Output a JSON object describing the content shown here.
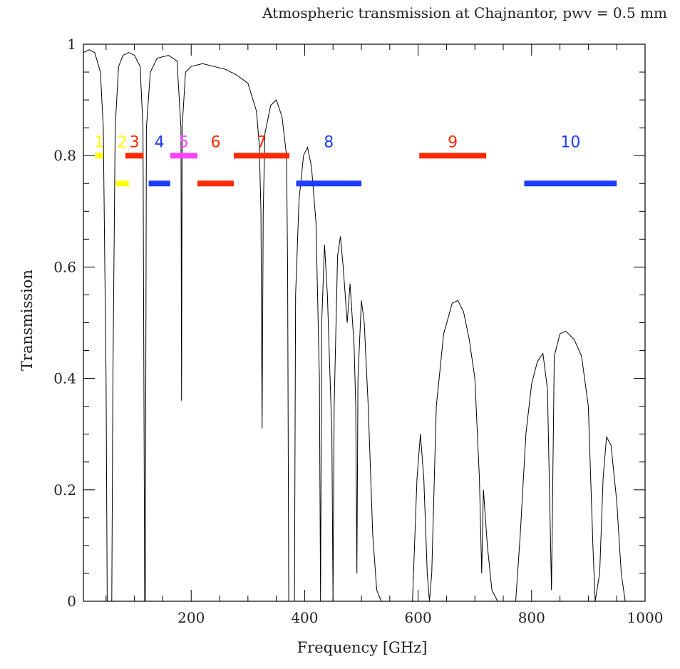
{
  "chart_data": {
    "type": "line",
    "title": "Atmospheric transmission at Chajnantor, pwv = 0.5 mm",
    "xlabel": "Frequency [GHz]",
    "ylabel": "Transmission",
    "xlim": [
      10,
      1000
    ],
    "ylim": [
      0,
      1
    ],
    "xticks": [
      200,
      400,
      600,
      800,
      1000
    ],
    "yticks": [
      0,
      0.2,
      0.4,
      0.6,
      0.8,
      1
    ],
    "ytick_labels": [
      "0",
      "0.2",
      "0.4",
      "0.6",
      "0.8",
      "1"
    ],
    "xtick_labels": [
      "200",
      "400",
      "600",
      "800",
      "1000"
    ],
    "grid": false,
    "series": [
      {
        "color": "#000000",
        "points": [
          [
            10,
            0.985
          ],
          [
            20,
            0.99
          ],
          [
            30,
            0.985
          ],
          [
            40,
            0.95
          ],
          [
            45,
            0.85
          ],
          [
            50,
            0.4
          ],
          [
            52,
            0.0
          ],
          [
            60,
            0.0
          ],
          [
            62,
            0.4
          ],
          [
            66,
            0.85
          ],
          [
            72,
            0.96
          ],
          [
            80,
            0.98
          ],
          [
            90,
            0.985
          ],
          [
            100,
            0.98
          ],
          [
            110,
            0.96
          ],
          [
            115,
            0.85
          ],
          [
            118,
            0.0
          ],
          [
            119,
            0.0
          ],
          [
            121,
            0.85
          ],
          [
            128,
            0.95
          ],
          [
            140,
            0.975
          ],
          [
            160,
            0.98
          ],
          [
            175,
            0.97
          ],
          [
            182,
            0.85
          ],
          [
            183,
            0.36
          ],
          [
            184,
            0.85
          ],
          [
            190,
            0.95
          ],
          [
            200,
            0.96
          ],
          [
            220,
            0.965
          ],
          [
            240,
            0.96
          ],
          [
            260,
            0.955
          ],
          [
            280,
            0.945
          ],
          [
            300,
            0.93
          ],
          [
            315,
            0.88
          ],
          [
            320,
            0.82
          ],
          [
            323,
            0.7
          ],
          [
            325,
            0.31
          ],
          [
            327,
            0.7
          ],
          [
            330,
            0.84
          ],
          [
            340,
            0.89
          ],
          [
            350,
            0.9
          ],
          [
            360,
            0.87
          ],
          [
            368,
            0.8
          ],
          [
            370,
            0.6
          ],
          [
            372,
            0.0
          ],
          [
            382,
            0.0
          ],
          [
            384,
            0.55
          ],
          [
            390,
            0.72
          ],
          [
            398,
            0.8
          ],
          [
            405,
            0.815
          ],
          [
            412,
            0.78
          ],
          [
            420,
            0.68
          ],
          [
            426,
            0.4
          ],
          [
            428,
            0.0
          ],
          [
            430,
            0.5
          ],
          [
            435,
            0.64
          ],
          [
            440,
            0.55
          ],
          [
            448,
            0.3
          ],
          [
            450,
            0.0
          ],
          [
            452,
            0.35
          ],
          [
            458,
            0.62
          ],
          [
            463,
            0.655
          ],
          [
            468,
            0.6
          ],
          [
            475,
            0.5
          ],
          [
            480,
            0.57
          ],
          [
            487,
            0.46
          ],
          [
            490,
            0.35
          ],
          [
            492,
            0.05
          ],
          [
            494,
            0.4
          ],
          [
            500,
            0.54
          ],
          [
            505,
            0.5
          ],
          [
            512,
            0.35
          ],
          [
            520,
            0.12
          ],
          [
            527,
            0.02
          ],
          [
            535,
            0.0
          ],
          [
            590,
            0.0
          ],
          [
            598,
            0.22
          ],
          [
            604,
            0.3
          ],
          [
            610,
            0.22
          ],
          [
            616,
            0.05
          ],
          [
            620,
            0.0
          ],
          [
            624,
            0.05
          ],
          [
            632,
            0.35
          ],
          [
            645,
            0.48
          ],
          [
            660,
            0.535
          ],
          [
            670,
            0.54
          ],
          [
            680,
            0.52
          ],
          [
            690,
            0.47
          ],
          [
            700,
            0.4
          ],
          [
            708,
            0.22
          ],
          [
            712,
            0.05
          ],
          [
            715,
            0.2
          ],
          [
            722,
            0.1
          ],
          [
            730,
            0.02
          ],
          [
            740,
            0.0
          ],
          [
            772,
            0.0
          ],
          [
            780,
            0.12
          ],
          [
            790,
            0.3
          ],
          [
            800,
            0.39
          ],
          [
            810,
            0.43
          ],
          [
            820,
            0.445
          ],
          [
            828,
            0.38
          ],
          [
            835,
            0.02
          ],
          [
            840,
            0.44
          ],
          [
            850,
            0.48
          ],
          [
            860,
            0.485
          ],
          [
            875,
            0.47
          ],
          [
            888,
            0.44
          ],
          [
            900,
            0.35
          ],
          [
            908,
            0.1
          ],
          [
            912,
            0.0
          ],
          [
            920,
            0.05
          ],
          [
            926,
            0.22
          ],
          [
            932,
            0.295
          ],
          [
            940,
            0.28
          ],
          [
            950,
            0.18
          ],
          [
            958,
            0.05
          ],
          [
            965,
            0.0
          ],
          [
            1000,
            0.0
          ]
        ]
      }
    ],
    "bands": [
      {
        "label": "1",
        "color": "#ffff00",
        "x0": 31,
        "x1": 45,
        "y": 0.8
      },
      {
        "label": "2",
        "color": "#ffff00",
        "x0": 67,
        "x1": 90,
        "y": 0.75
      },
      {
        "label": "3",
        "color": "#ff2a00",
        "x0": 84,
        "x1": 116,
        "y": 0.8
      },
      {
        "label": "4",
        "color": "#1e3cff",
        "x0": 125,
        "x1": 163,
        "y": 0.75
      },
      {
        "label": "5",
        "color": "#ff44ff",
        "x0": 163,
        "x1": 211,
        "y": 0.8
      },
      {
        "label": "6",
        "color": "#ff2a00",
        "x0": 211,
        "x1": 275,
        "y": 0.75
      },
      {
        "label": "7",
        "color": "#ff2a00",
        "x0": 275,
        "x1": 373,
        "y": 0.8
      },
      {
        "label": "8",
        "color": "#1e3cff",
        "x0": 385,
        "x1": 500,
        "y": 0.75
      },
      {
        "label": "9",
        "color": "#ff2a00",
        "x0": 602,
        "x1": 720,
        "y": 0.8
      },
      {
        "label": "10",
        "color": "#1e3cff",
        "x0": 787,
        "x1": 950,
        "y": 0.75
      }
    ],
    "band_label_y": 0.825
  },
  "colors": {
    "background": "#2a47b8",
    "plot_area": "#ffffff",
    "line": "#000000"
  }
}
